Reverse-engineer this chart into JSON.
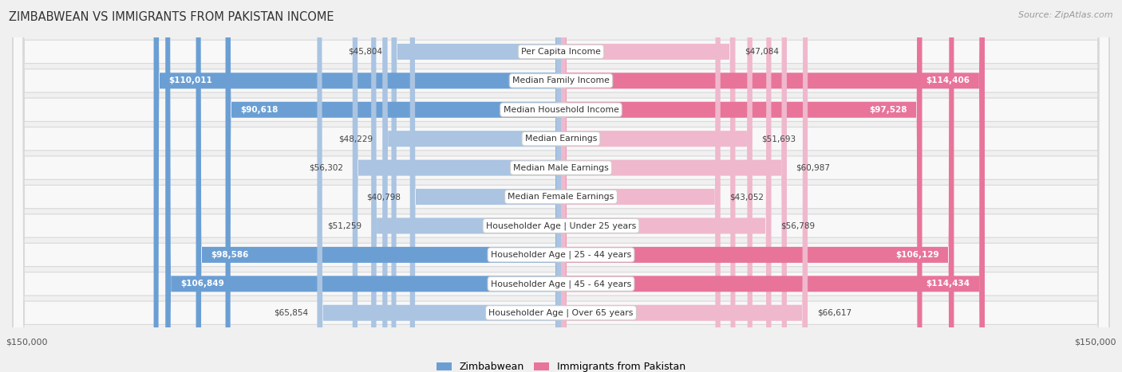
{
  "title": "ZIMBABWEAN VS IMMIGRANTS FROM PAKISTAN INCOME",
  "source": "Source: ZipAtlas.com",
  "categories": [
    "Per Capita Income",
    "Median Family Income",
    "Median Household Income",
    "Median Earnings",
    "Median Male Earnings",
    "Median Female Earnings",
    "Householder Age | Under 25 years",
    "Householder Age | 25 - 44 years",
    "Householder Age | 45 - 64 years",
    "Householder Age | Over 65 years"
  ],
  "zimbabwean_values": [
    45804,
    110011,
    90618,
    48229,
    56302,
    40798,
    51259,
    98586,
    106849,
    65854
  ],
  "pakistan_values": [
    47084,
    114406,
    97528,
    51693,
    60987,
    43052,
    56789,
    106129,
    114434,
    66617
  ],
  "zimbabwean_labels": [
    "$45,804",
    "$110,011",
    "$90,618",
    "$48,229",
    "$56,302",
    "$40,798",
    "$51,259",
    "$98,586",
    "$106,849",
    "$65,854"
  ],
  "pakistan_labels": [
    "$47,084",
    "$114,406",
    "$97,528",
    "$51,693",
    "$60,987",
    "$43,052",
    "$56,789",
    "$106,129",
    "$114,434",
    "$66,617"
  ],
  "max_value": 150000,
  "zim_light": "#aac4e2",
  "zim_dark": "#6b9fd4",
  "pak_light": "#f0b8cc",
  "pak_dark": "#e8749a",
  "label_threshold": 80000,
  "bg_color": "#f0f0f0",
  "row_bg": "#f8f8f8",
  "row_border": "#d8d8d8",
  "legend_zim": "Zimbabwean",
  "legend_pak": "Immigrants from Pakistan",
  "bottom_left": "$150,000",
  "bottom_right": "$150,000"
}
